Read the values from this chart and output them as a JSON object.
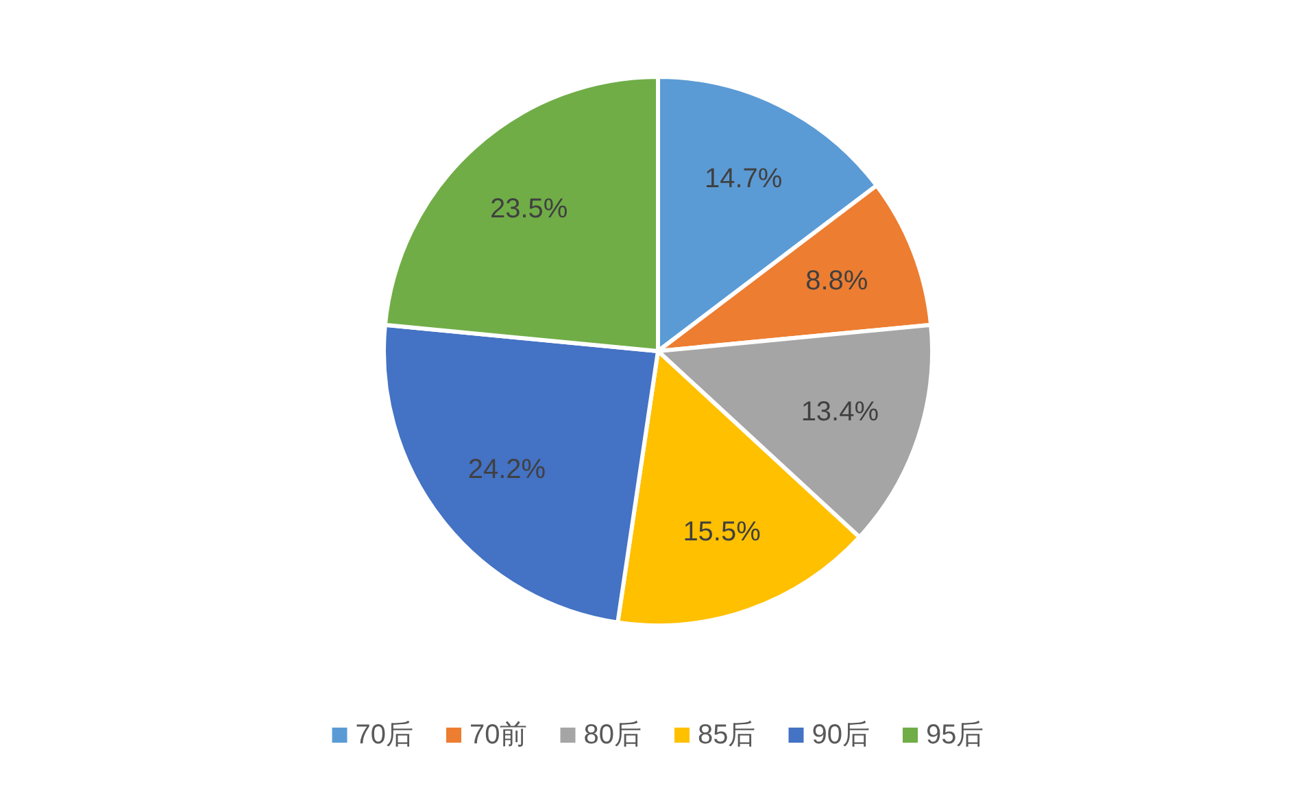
{
  "chart_data": {
    "type": "pie",
    "categories": [
      "70后",
      "70前",
      "80后",
      "85后",
      "90后",
      "95后"
    ],
    "values": [
      14.7,
      8.8,
      13.4,
      15.5,
      24.2,
      23.5
    ],
    "colors": [
      "#5b9bd5",
      "#ed7d31",
      "#a5a5a5",
      "#ffc000",
      "#4472c4",
      "#70ad47"
    ],
    "value_labels": [
      "14.7%",
      "8.8%",
      "13.4%",
      "15.5%",
      "24.2%",
      "23.5%"
    ],
    "legend": "bottom"
  }
}
